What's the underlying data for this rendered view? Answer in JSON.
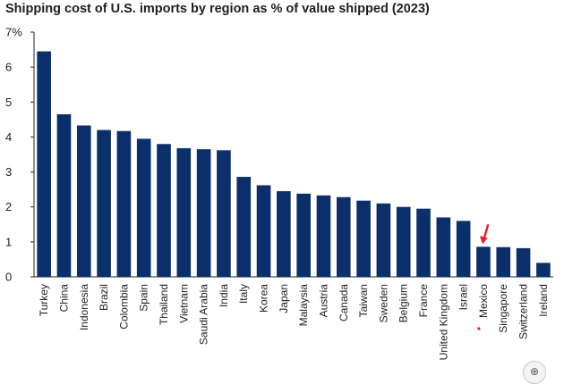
{
  "chart_data": {
    "type": "bar",
    "title": "Shipping cost of U.S. imports by region as % of value shipped (2023)",
    "xlabel": "",
    "ylabel": "",
    "ylim": [
      0,
      7
    ],
    "y_ticks": [
      "0",
      "1",
      "2",
      "3",
      "4",
      "5",
      "6",
      "7%"
    ],
    "categories": [
      "Turkey",
      "China",
      "Indonesia",
      "Brazil",
      "Colombia",
      "Spain",
      "Thailand",
      "Vietnam",
      "Saudi Arabia",
      "India",
      "Italy",
      "Korea",
      "Japan",
      "Malaysia",
      "Austria",
      "Canada",
      "Taiwan",
      "Sweden",
      "Belgium",
      "France",
      "United Kingdom",
      "Israel",
      "Mexico",
      "Singapore",
      "Switzerland",
      "Ireland"
    ],
    "values": [
      6.45,
      4.65,
      4.33,
      4.2,
      4.17,
      3.95,
      3.8,
      3.68,
      3.65,
      3.62,
      2.86,
      2.62,
      2.45,
      2.38,
      2.33,
      2.28,
      2.18,
      2.1,
      2.0,
      1.95,
      1.7,
      1.6,
      0.86,
      0.85,
      0.82,
      0.4
    ],
    "bar_color": "#0b2f6b",
    "grid": false,
    "legend": "none",
    "annotation": {
      "category": "Mexico",
      "marker": "red-arrow",
      "color": "#e8202a"
    }
  },
  "ui": {
    "zoom_icon": "magnifier-plus-icon",
    "zoom_glyph": "⊕"
  }
}
